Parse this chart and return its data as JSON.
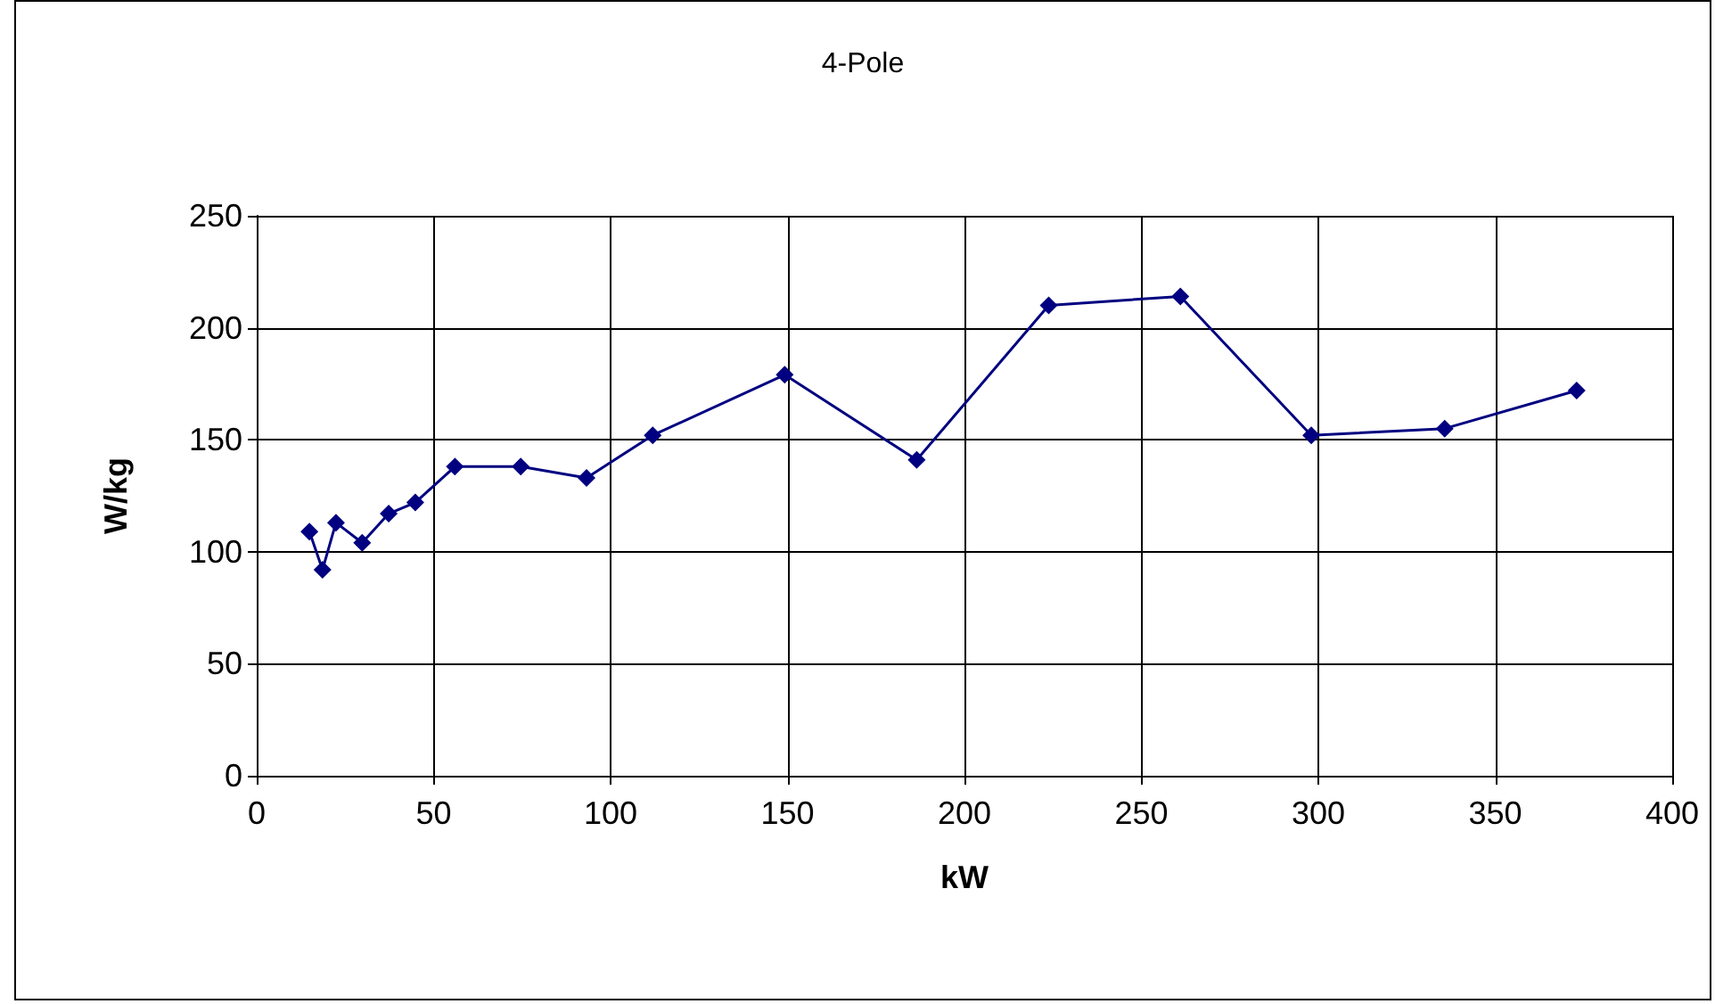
{
  "chart_data": {
    "type": "line",
    "title": "4-Pole",
    "xlabel": "kW",
    "ylabel": "W/kg",
    "x": [
      14.9,
      18.6,
      22.4,
      29.8,
      37.3,
      44.8,
      56,
      74.6,
      93.2,
      111.9,
      149.2,
      186.5,
      223.8,
      261,
      298,
      335.7,
      373
    ],
    "series": [
      {
        "color": "#000080",
        "values": [
          109,
          92,
          113,
          104,
          117,
          122,
          138,
          138,
          133,
          152,
          179,
          141,
          210,
          214,
          152,
          155,
          172
        ]
      }
    ],
    "xlim": [
      0,
      400
    ],
    "xticks": [
      0,
      50,
      100,
      150,
      200,
      250,
      300,
      350,
      400
    ],
    "ylim": [
      0,
      250
    ],
    "yticks": [
      0,
      50,
      100,
      150,
      200,
      250
    ],
    "grid": true,
    "marker": "diamond",
    "line_style": "solid"
  }
}
